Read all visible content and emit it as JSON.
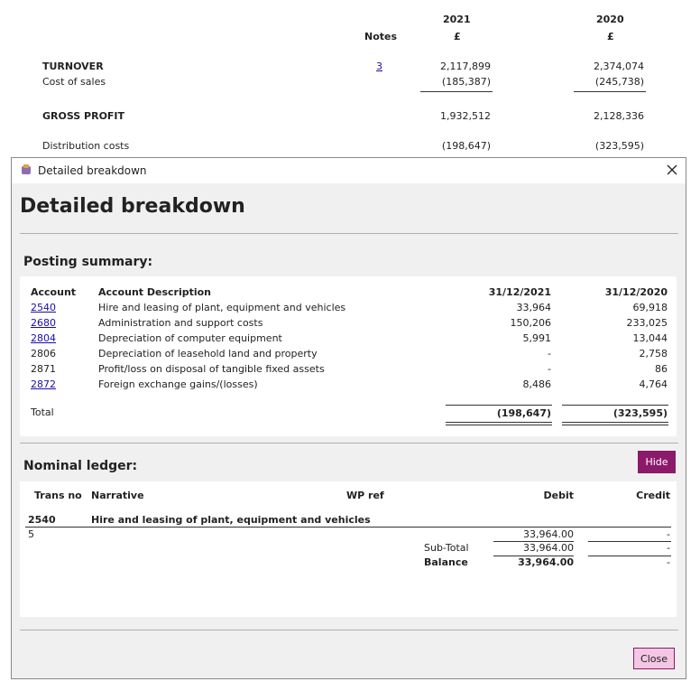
{
  "background": {
    "notes_header": "Notes",
    "years": [
      "2021",
      "2020"
    ],
    "currency": [
      "£",
      "£"
    ],
    "rows": [
      {
        "label": "TURNOVER",
        "note": "3",
        "values": [
          "2,117,899",
          "2,374,074"
        ]
      },
      {
        "label": "Cost of sales",
        "values": [
          "(185,387)",
          "(245,738)"
        ]
      },
      {
        "label": "GROSS PROFIT",
        "values": [
          "1,932,512",
          "2,128,336"
        ]
      },
      {
        "label": "Distribution costs",
        "values": [
          "(198,647)",
          "(323,595)"
        ]
      }
    ]
  },
  "dialog": {
    "window_title": "Detailed breakdown",
    "heading": "Detailed breakdown",
    "posting_summary": {
      "title": "Posting summary:",
      "columns": [
        "Account",
        "Account Description",
        "31/12/2021",
        "31/12/2020"
      ],
      "rows": [
        [
          "2540",
          "Hire and leasing of plant, equipment and vehicles",
          "33,964",
          "69,918"
        ],
        [
          "2680",
          "Administration and support costs",
          "150,206",
          "233,025"
        ],
        [
          "2804",
          "Depreciation of computer equipment",
          "5,991",
          "13,044"
        ],
        [
          "2806",
          "Depreciation of leasehold land and property",
          "-",
          "2,758"
        ],
        [
          "2871",
          "Profit/loss on disposal of tangible fixed assets",
          "-",
          "86"
        ],
        [
          "2872",
          "Foreign exchange gains/(losses)",
          "8,486",
          "4,764"
        ]
      ],
      "total": {
        "label": "Total",
        "values": [
          "(198,647)",
          "(323,595)"
        ]
      }
    },
    "nominal_ledger": {
      "title": "Nominal ledger:",
      "hide_button": "Hide",
      "columns": [
        "Trans no",
        "Narrative",
        "WP ref",
        "Debit",
        "Credit"
      ],
      "group": {
        "account": "2540",
        "name": "Hire and leasing of plant, equipment and vehicles"
      },
      "entry": {
        "trans_no": "5",
        "debit": "33,964.00",
        "credit": "-"
      },
      "subtotal": {
        "label": "Sub-Total",
        "debit": "33,964.00",
        "credit": "-"
      },
      "balance": {
        "label": "Balance",
        "debit": "33,964.00",
        "credit": "-"
      }
    },
    "close_button": "Close"
  }
}
